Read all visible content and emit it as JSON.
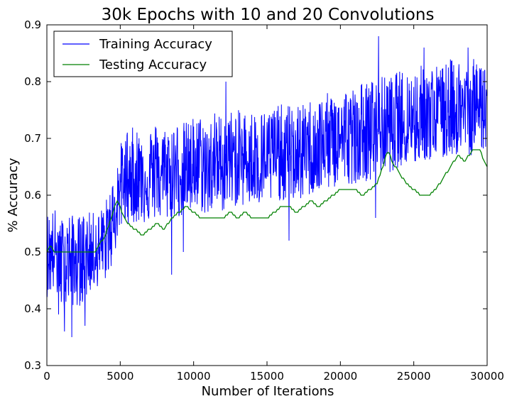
{
  "chart_data": {
    "type": "line",
    "title": "30k Epochs with 10 and 20 Convolutions",
    "xlabel": "Number of Iterations",
    "ylabel": "% Accuracy",
    "xlim": [
      0,
      30000
    ],
    "ylim": [
      0.3,
      0.9
    ],
    "xticks": [
      0,
      5000,
      10000,
      15000,
      20000,
      25000,
      30000
    ],
    "xtick_labels": [
      "0",
      "5000",
      "10000",
      "15000",
      "20000",
      "25000",
      "30000"
    ],
    "yticks": [
      0.3,
      0.4,
      0.5,
      0.6,
      0.7,
      0.8,
      0.9
    ],
    "ytick_labels": [
      "0.3",
      "0.4",
      "0.5",
      "0.6",
      "0.7",
      "0.8",
      "0.9"
    ],
    "grid": false,
    "legend_position": "top-left",
    "series": [
      {
        "name": "Training Accuracy",
        "color": "#0000ff",
        "x": [
          0,
          500,
          1000,
          1500,
          2000,
          2500,
          3000,
          3500,
          4000,
          4500,
          5000,
          5500,
          6000,
          6500,
          7000,
          7500,
          8000,
          8500,
          9000,
          9500,
          10000,
          10500,
          11000,
          11500,
          12000,
          12500,
          13000,
          13500,
          14000,
          14500,
          15000,
          15500,
          16000,
          16500,
          17000,
          17500,
          18000,
          18500,
          19000,
          19500,
          20000,
          20500,
          21000,
          21500,
          22000,
          22500,
          23000,
          23500,
          24000,
          24500,
          25000,
          25500,
          26000,
          26500,
          27000,
          27500,
          28000,
          28500,
          29000,
          29500,
          30000
        ],
        "y": [
          0.49,
          0.5,
          0.48,
          0.49,
          0.48,
          0.49,
          0.5,
          0.5,
          0.52,
          0.55,
          0.61,
          0.63,
          0.63,
          0.63,
          0.63,
          0.64,
          0.63,
          0.64,
          0.64,
          0.64,
          0.65,
          0.65,
          0.64,
          0.66,
          0.65,
          0.66,
          0.66,
          0.66,
          0.66,
          0.66,
          0.66,
          0.67,
          0.67,
          0.67,
          0.67,
          0.67,
          0.68,
          0.68,
          0.69,
          0.69,
          0.7,
          0.7,
          0.7,
          0.71,
          0.71,
          0.72,
          0.72,
          0.72,
          0.73,
          0.73,
          0.73,
          0.74,
          0.74,
          0.74,
          0.74,
          0.75,
          0.75,
          0.75,
          0.75,
          0.76,
          0.76
        ],
        "band_low": [
          0.42,
          0.43,
          0.4,
          0.41,
          0.4,
          0.41,
          0.43,
          0.44,
          0.45,
          0.48,
          0.54,
          0.55,
          0.55,
          0.55,
          0.55,
          0.56,
          0.55,
          0.56,
          0.56,
          0.56,
          0.57,
          0.57,
          0.56,
          0.58,
          0.57,
          0.58,
          0.58,
          0.58,
          0.58,
          0.58,
          0.58,
          0.59,
          0.59,
          0.59,
          0.59,
          0.59,
          0.6,
          0.6,
          0.61,
          0.61,
          0.62,
          0.62,
          0.62,
          0.63,
          0.62,
          0.64,
          0.64,
          0.64,
          0.65,
          0.65,
          0.65,
          0.66,
          0.66,
          0.66,
          0.66,
          0.67,
          0.67,
          0.67,
          0.67,
          0.68,
          0.68
        ],
        "band_high": [
          0.57,
          0.58,
          0.56,
          0.57,
          0.56,
          0.57,
          0.57,
          0.57,
          0.59,
          0.63,
          0.69,
          0.72,
          0.72,
          0.72,
          0.72,
          0.73,
          0.72,
          0.73,
          0.73,
          0.73,
          0.74,
          0.74,
          0.73,
          0.75,
          0.74,
          0.75,
          0.75,
          0.75,
          0.75,
          0.75,
          0.75,
          0.76,
          0.76,
          0.76,
          0.76,
          0.76,
          0.77,
          0.77,
          0.78,
          0.78,
          0.79,
          0.79,
          0.79,
          0.8,
          0.8,
          0.81,
          0.81,
          0.81,
          0.82,
          0.82,
          0.82,
          0.83,
          0.83,
          0.83,
          0.83,
          0.84,
          0.84,
          0.84,
          0.84,
          0.84,
          0.84
        ],
        "extremes": [
          {
            "x": 1700,
            "y": 0.35
          },
          {
            "x": 1200,
            "y": 0.36
          },
          {
            "x": 2600,
            "y": 0.37
          },
          {
            "x": 800,
            "y": 0.39
          },
          {
            "x": 8500,
            "y": 0.46
          },
          {
            "x": 9300,
            "y": 0.5
          },
          {
            "x": 16500,
            "y": 0.52
          },
          {
            "x": 22400,
            "y": 0.56
          },
          {
            "x": 22600,
            "y": 0.88
          },
          {
            "x": 12200,
            "y": 0.8
          },
          {
            "x": 25700,
            "y": 0.86
          },
          {
            "x": 28700,
            "y": 0.86
          }
        ]
      },
      {
        "name": "Testing Accuracy",
        "color": "#008000",
        "x": [
          0,
          250,
          500,
          1000,
          1500,
          2000,
          2500,
          3000,
          3250,
          3500,
          3750,
          4000,
          4250,
          4500,
          4750,
          5000,
          5250,
          5500,
          6000,
          6500,
          7000,
          7500,
          8000,
          8500,
          9000,
          9500,
          10000,
          10500,
          11000,
          11500,
          12000,
          12500,
          13000,
          13500,
          14000,
          14500,
          15000,
          15500,
          16000,
          16500,
          17000,
          17500,
          18000,
          18500,
          19000,
          19500,
          20000,
          20500,
          21000,
          21500,
          22000,
          22500,
          23000,
          23250,
          23500,
          24000,
          24500,
          25000,
          25500,
          26000,
          26500,
          27000,
          27500,
          28000,
          28500,
          29000,
          29500,
          29800,
          30000
        ],
        "y": [
          0.5,
          0.51,
          0.5,
          0.5,
          0.5,
          0.5,
          0.5,
          0.5,
          0.5,
          0.51,
          0.52,
          0.53,
          0.55,
          0.57,
          0.59,
          0.58,
          0.56,
          0.55,
          0.54,
          0.53,
          0.54,
          0.55,
          0.54,
          0.56,
          0.57,
          0.58,
          0.57,
          0.56,
          0.56,
          0.56,
          0.56,
          0.57,
          0.56,
          0.57,
          0.56,
          0.56,
          0.56,
          0.57,
          0.58,
          0.58,
          0.57,
          0.58,
          0.59,
          0.58,
          0.59,
          0.6,
          0.61,
          0.61,
          0.61,
          0.6,
          0.61,
          0.62,
          0.66,
          0.68,
          0.66,
          0.64,
          0.62,
          0.61,
          0.6,
          0.6,
          0.61,
          0.63,
          0.65,
          0.67,
          0.66,
          0.68,
          0.68,
          0.66,
          0.65
        ]
      }
    ]
  }
}
